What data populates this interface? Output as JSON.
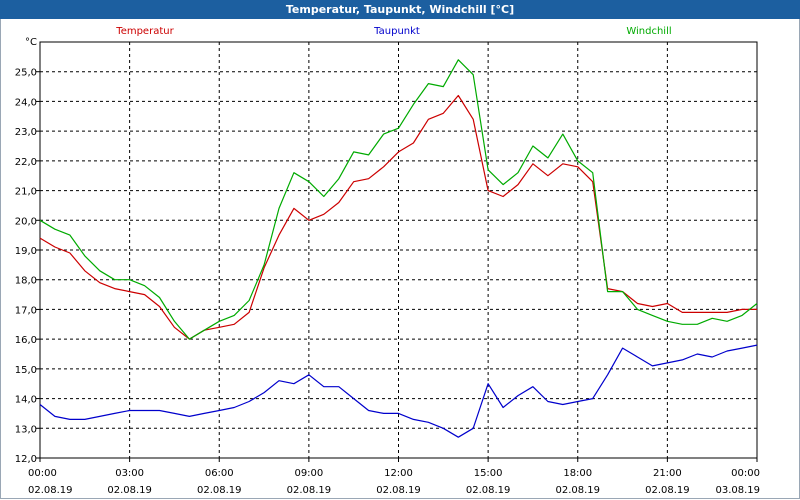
{
  "window": {
    "title": "Temperatur, Taupunkt, Windchill [°C]"
  },
  "chart_data": {
    "type": "line",
    "title": "Temperatur, Taupunkt, Windchill [°C]",
    "ylabel": "°C",
    "ylim": [
      12.0,
      26.0
    ],
    "xlim": [
      0,
      24
    ],
    "grid": true,
    "legend_position": "top",
    "y_ticks": [
      "12,0",
      "13,0",
      "14,0",
      "15,0",
      "16,0",
      "17,0",
      "18,0",
      "19,0",
      "20,0",
      "21,0",
      "22,0",
      "23,0",
      "24,0",
      "25,0"
    ],
    "x_ticks": [
      {
        "time": "00:00",
        "date": "02.08.19"
      },
      {
        "time": "03:00",
        "date": "02.08.19"
      },
      {
        "time": "06:00",
        "date": "02.08.19"
      },
      {
        "time": "09:00",
        "date": "02.08.19"
      },
      {
        "time": "12:00",
        "date": "02.08.19"
      },
      {
        "time": "15:00",
        "date": "02.08.19"
      },
      {
        "time": "18:00",
        "date": "02.08.19"
      },
      {
        "time": "21:00",
        "date": "02.08.19"
      },
      {
        "time": "00:00",
        "date": "03.08.19"
      }
    ],
    "series": [
      {
        "name": "Temperatur",
        "color": "#cc0000",
        "points": [
          [
            0,
            19.4
          ],
          [
            0.5,
            19.1
          ],
          [
            1,
            18.9
          ],
          [
            1.5,
            18.3
          ],
          [
            2,
            17.9
          ],
          [
            2.5,
            17.7
          ],
          [
            3,
            17.6
          ],
          [
            3.5,
            17.5
          ],
          [
            4,
            17.1
          ],
          [
            4.5,
            16.4
          ],
          [
            5,
            16.0
          ],
          [
            5.5,
            16.3
          ],
          [
            6,
            16.4
          ],
          [
            6.5,
            16.5
          ],
          [
            7,
            16.9
          ],
          [
            7.5,
            18.4
          ],
          [
            8,
            19.5
          ],
          [
            8.5,
            20.4
          ],
          [
            9,
            20.0
          ],
          [
            9.5,
            20.2
          ],
          [
            10,
            20.6
          ],
          [
            10.5,
            21.3
          ],
          [
            11,
            21.4
          ],
          [
            11.5,
            21.8
          ],
          [
            12,
            22.3
          ],
          [
            12.5,
            22.6
          ],
          [
            13,
            23.4
          ],
          [
            13.5,
            23.6
          ],
          [
            14,
            24.2
          ],
          [
            14.5,
            23.4
          ],
          [
            15,
            21.0
          ],
          [
            15.5,
            20.8
          ],
          [
            16,
            21.2
          ],
          [
            16.5,
            21.9
          ],
          [
            17,
            21.5
          ],
          [
            17.5,
            21.9
          ],
          [
            18,
            21.8
          ],
          [
            18.5,
            21.3
          ],
          [
            19,
            17.7
          ],
          [
            19.5,
            17.6
          ],
          [
            20,
            17.2
          ],
          [
            20.5,
            17.1
          ],
          [
            21,
            17.2
          ],
          [
            21.5,
            16.9
          ],
          [
            22,
            16.9
          ],
          [
            22.5,
            16.9
          ],
          [
            23,
            16.9
          ],
          [
            23.5,
            17.0
          ],
          [
            24,
            17.0
          ]
        ]
      },
      {
        "name": "Taupunkt",
        "color": "#0000cc",
        "points": [
          [
            0,
            13.8
          ],
          [
            0.5,
            13.4
          ],
          [
            1,
            13.3
          ],
          [
            1.5,
            13.3
          ],
          [
            2,
            13.4
          ],
          [
            2.5,
            13.5
          ],
          [
            3,
            13.6
          ],
          [
            3.5,
            13.6
          ],
          [
            4,
            13.6
          ],
          [
            4.5,
            13.5
          ],
          [
            5,
            13.4
          ],
          [
            5.5,
            13.5
          ],
          [
            6,
            13.6
          ],
          [
            6.5,
            13.7
          ],
          [
            7,
            13.9
          ],
          [
            7.5,
            14.2
          ],
          [
            8,
            14.6
          ],
          [
            8.5,
            14.5
          ],
          [
            9,
            14.8
          ],
          [
            9.5,
            14.4
          ],
          [
            10,
            14.4
          ],
          [
            10.5,
            14.0
          ],
          [
            11,
            13.6
          ],
          [
            11.5,
            13.5
          ],
          [
            12,
            13.5
          ],
          [
            12.5,
            13.3
          ],
          [
            13,
            13.2
          ],
          [
            13.5,
            13.0
          ],
          [
            14,
            12.7
          ],
          [
            14.5,
            13.0
          ],
          [
            15,
            14.5
          ],
          [
            15.5,
            13.7
          ],
          [
            16,
            14.1
          ],
          [
            16.5,
            14.4
          ],
          [
            17,
            13.9
          ],
          [
            17.5,
            13.8
          ],
          [
            18,
            13.9
          ],
          [
            18.5,
            14.0
          ],
          [
            19,
            14.8
          ],
          [
            19.5,
            15.7
          ],
          [
            20,
            15.4
          ],
          [
            20.5,
            15.1
          ],
          [
            21,
            15.2
          ],
          [
            21.5,
            15.3
          ],
          [
            22,
            15.5
          ],
          [
            22.5,
            15.4
          ],
          [
            23,
            15.6
          ],
          [
            23.5,
            15.7
          ],
          [
            24,
            15.8
          ]
        ]
      },
      {
        "name": "Windchill",
        "color": "#00aa00",
        "points": [
          [
            0,
            20.0
          ],
          [
            0.5,
            19.7
          ],
          [
            1,
            19.5
          ],
          [
            1.5,
            18.8
          ],
          [
            2,
            18.3
          ],
          [
            2.5,
            18.0
          ],
          [
            3,
            18.0
          ],
          [
            3.5,
            17.8
          ],
          [
            4,
            17.4
          ],
          [
            4.5,
            16.6
          ],
          [
            5,
            16.0
          ],
          [
            5.5,
            16.3
          ],
          [
            6,
            16.6
          ],
          [
            6.5,
            16.8
          ],
          [
            7,
            17.3
          ],
          [
            7.5,
            18.5
          ],
          [
            8,
            20.4
          ],
          [
            8.5,
            21.6
          ],
          [
            9,
            21.3
          ],
          [
            9.5,
            20.8
          ],
          [
            10,
            21.4
          ],
          [
            10.5,
            22.3
          ],
          [
            11,
            22.2
          ],
          [
            11.5,
            22.9
          ],
          [
            12,
            23.1
          ],
          [
            12.5,
            23.9
          ],
          [
            13,
            24.6
          ],
          [
            13.5,
            24.5
          ],
          [
            14,
            25.4
          ],
          [
            14.5,
            24.9
          ],
          [
            15,
            21.7
          ],
          [
            15.5,
            21.2
          ],
          [
            16,
            21.6
          ],
          [
            16.5,
            22.5
          ],
          [
            17,
            22.1
          ],
          [
            17.5,
            22.9
          ],
          [
            18,
            22.0
          ],
          [
            18.5,
            21.6
          ],
          [
            19,
            17.6
          ],
          [
            19.5,
            17.6
          ],
          [
            20,
            17.0
          ],
          [
            20.5,
            16.8
          ],
          [
            21,
            16.6
          ],
          [
            21.5,
            16.5
          ],
          [
            22,
            16.5
          ],
          [
            22.5,
            16.7
          ],
          [
            23,
            16.6
          ],
          [
            23.5,
            16.8
          ],
          [
            24,
            17.2
          ]
        ]
      }
    ]
  }
}
